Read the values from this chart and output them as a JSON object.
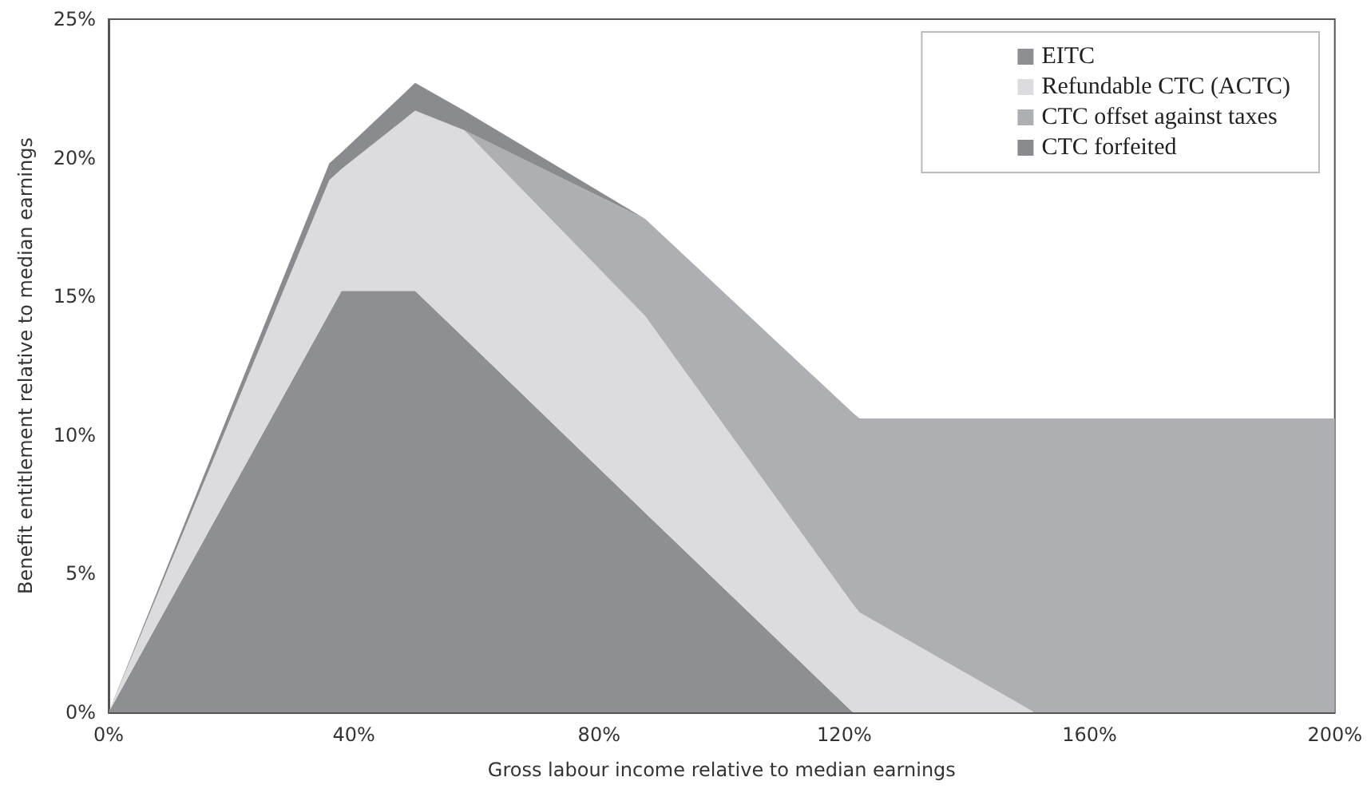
{
  "chart_data": {
    "type": "area",
    "stacked": true,
    "xlabel": "Gross labour income relative to median earnings",
    "ylabel": "Benefit entitlement relative to median earnings",
    "x": [
      0,
      36,
      38,
      50,
      58,
      87.5,
      121.4,
      122.5,
      151,
      200
    ],
    "series": [
      {
        "name": "EITC",
        "color": "#8e8f93",
        "values": [
          0,
          14.4,
          15.2,
          15.2,
          13.5,
          7.2,
          0,
          null,
          null,
          null
        ]
      },
      {
        "name": "Refundable CTC (ACTC)",
        "color": "#dcdcde",
        "values": [
          0,
          4.8,
          4.4,
          6.5,
          7.5,
          7.1,
          3.9,
          3.6,
          0,
          null
        ]
      },
      {
        "name": "CTC offset against taxes",
        "color": "#aeafb3",
        "values": [
          null,
          null,
          null,
          null,
          0,
          3.5,
          6.9,
          7.0,
          10.6,
          10.6
        ]
      },
      {
        "name": "CTC forfeited",
        "color": "#8a8b8f",
        "values": [
          0,
          0.6,
          0.6,
          1.0,
          0.7,
          0,
          null,
          null,
          null,
          null
        ]
      }
    ],
    "xlim": [
      0,
      200
    ],
    "xticks": [
      {
        "value": 0,
        "label": "0%"
      },
      {
        "value": 40,
        "label": "40%"
      },
      {
        "value": 80,
        "label": "80%"
      },
      {
        "value": 120,
        "label": "120%"
      },
      {
        "value": 160,
        "label": "160%"
      },
      {
        "value": 200,
        "label": "200%"
      }
    ],
    "ylim": [
      0,
      25
    ],
    "yticks": [
      {
        "value": 0,
        "label": "0%"
      },
      {
        "value": 5,
        "label": "5%"
      },
      {
        "value": 10,
        "label": "10%"
      },
      {
        "value": 15,
        "label": "15%"
      },
      {
        "value": 20,
        "label": "20%"
      },
      {
        "value": 25,
        "label": "25%"
      }
    ],
    "grid": false,
    "legend": "top right"
  }
}
